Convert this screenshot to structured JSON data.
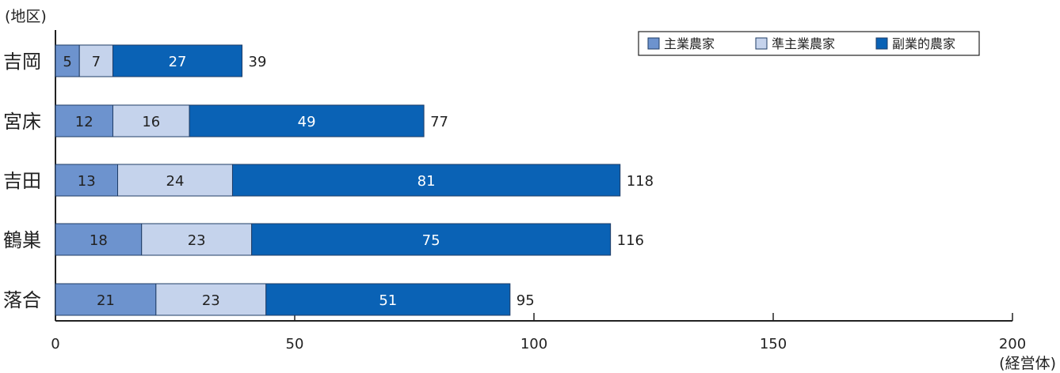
{
  "chart_data": {
    "type": "bar",
    "orientation": "horizontal",
    "stacked": true,
    "y_axis_unit": "(地区)",
    "x_axis_unit": "(経営体)",
    "categories": [
      "吉岡",
      "宮床",
      "吉田",
      "鶴巣",
      "落合"
    ],
    "series": [
      {
        "name": "主業農家",
        "values": [
          5,
          12,
          13,
          18,
          21
        ],
        "color": "#6d93ce"
      },
      {
        "name": "準主業農家",
        "values": [
          7,
          16,
          24,
          23,
          23
        ],
        "color": "#c5d3ec"
      },
      {
        "name": "副業的農家",
        "values": [
          27,
          49,
          81,
          75,
          51
        ],
        "color": "#0a62b5"
      }
    ],
    "totals": [
      39,
      77,
      118,
      116,
      95
    ],
    "xlim": [
      0,
      200
    ],
    "xticks": [
      0,
      50,
      100,
      150,
      200
    ],
    "grid": false,
    "legend_position": "top-right"
  }
}
